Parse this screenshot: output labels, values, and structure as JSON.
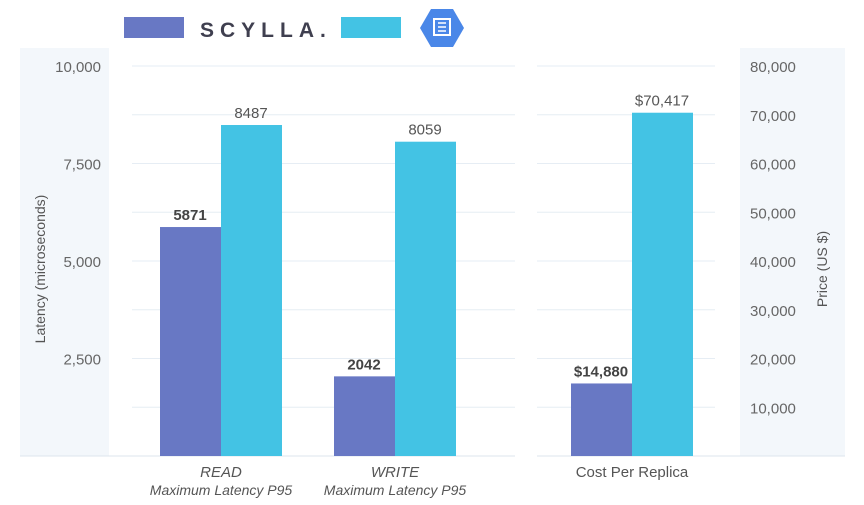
{
  "legend": [
    {
      "name": "SCYLLA.",
      "color": "#6878c4",
      "icon": "scylla-wordmark"
    },
    {
      "name": "",
      "color": "#43c3e4",
      "icon": "google-cloud-bigtable-hexagon-icon",
      "icon_color": "#4a87e8"
    }
  ],
  "chart_data": [
    {
      "type": "bar",
      "categories": [
        "READ",
        "WRITE"
      ],
      "category_sublabels": [
        "Maximum Latency P95",
        "Maximum Latency P95"
      ],
      "series": [
        {
          "values": [
            5871,
            2042
          ],
          "color": "#6878c4",
          "labels": [
            "5871",
            "2042"
          ]
        },
        {
          "values": [
            8487,
            8059
          ],
          "color": "#43c3e4",
          "labels": [
            "8487",
            "8059"
          ]
        }
      ],
      "ylabel": "Latency (microseconds)",
      "ylim": [
        0,
        10000
      ],
      "yticks": [
        "2,500",
        "5,000",
        "7,500",
        "10,000"
      ],
      "ytick_values": [
        2500,
        5000,
        7500,
        10000
      ],
      "grid_step": 1250,
      "grid": true,
      "axis_side": "left"
    },
    {
      "type": "bar",
      "categories": [
        "Cost Per Replica"
      ],
      "series": [
        {
          "values": [
            14880
          ],
          "color": "#6878c4",
          "labels": [
            "$14,880"
          ]
        },
        {
          "values": [
            70417
          ],
          "color": "#43c3e4",
          "labels": [
            "$70,417"
          ]
        }
      ],
      "ylabel": "Price (US $)",
      "ylim": [
        0,
        80000
      ],
      "yticks": [
        "10,000",
        "20,000",
        "30,000",
        "40,000",
        "50,000",
        "60,000",
        "70,000",
        "80,000"
      ],
      "ytick_values": [
        10000,
        20000,
        30000,
        40000,
        50000,
        60000,
        70000,
        80000
      ],
      "grid_step": 10000,
      "grid": true,
      "axis_side": "right"
    }
  ]
}
